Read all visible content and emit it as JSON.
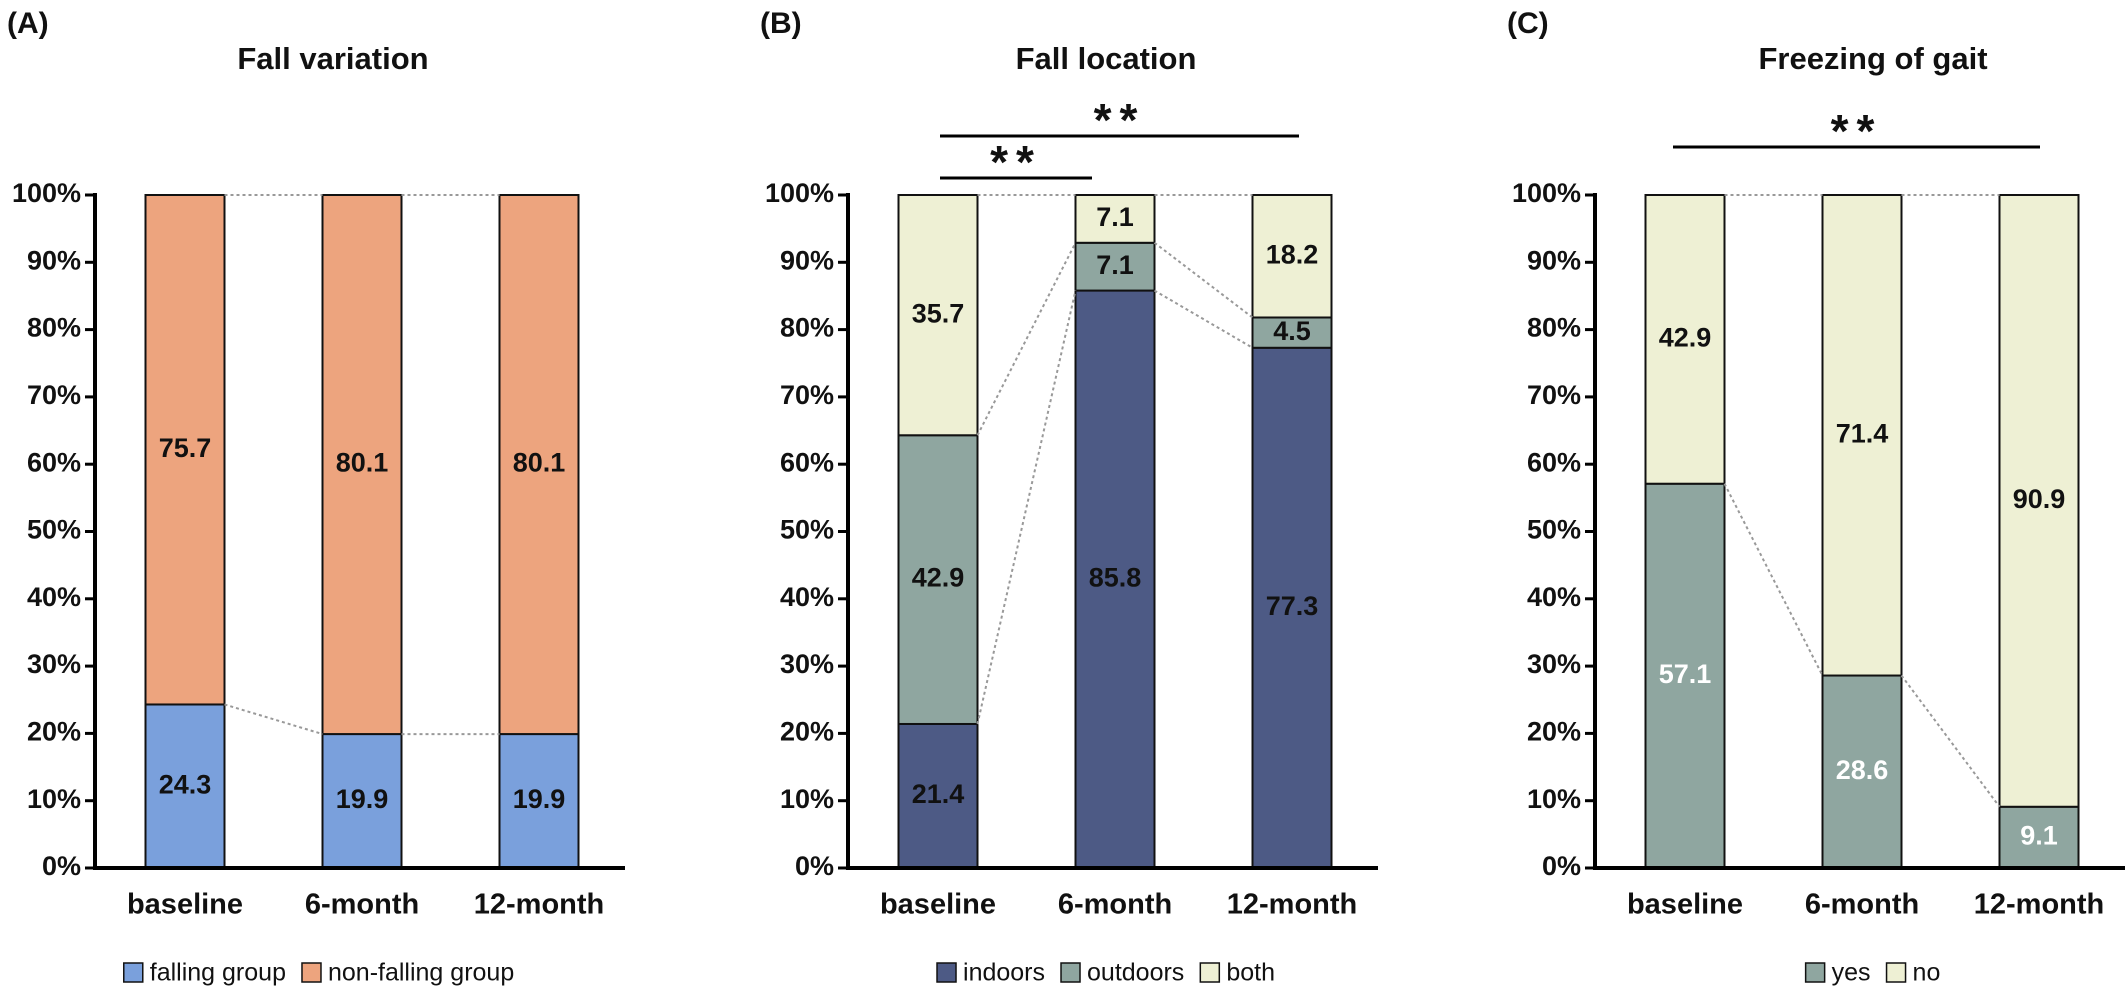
{
  "chart_data": [
    {
      "type": "stacked-bar",
      "panel_label": "(A)",
      "title": "Fall variation",
      "categories": [
        "baseline",
        "6-month",
        "12-month"
      ],
      "series": [
        {
          "name": "falling group",
          "color": "#7aa0dc",
          "label_color": "#111111",
          "values": [
            24.3,
            19.9,
            19.9
          ]
        },
        {
          "name": "non-falling group",
          "color": "#eda47e",
          "label_color": "#111111",
          "values": [
            75.7,
            80.1,
            80.1
          ]
        }
      ],
      "ylim": [
        0,
        100
      ],
      "yticks": [
        {
          "value": 0,
          "label": "0%"
        },
        {
          "value": 10,
          "label": "10%"
        },
        {
          "value": 20,
          "label": "20%"
        },
        {
          "value": 30,
          "label": "30%"
        },
        {
          "value": 40,
          "label": "40%"
        },
        {
          "value": 50,
          "label": "50%"
        },
        {
          "value": 60,
          "label": "60%"
        },
        {
          "value": 70,
          "label": "70%"
        },
        {
          "value": 80,
          "label": "80%"
        },
        {
          "value": 90,
          "label": "90%"
        },
        {
          "value": 100,
          "label": "100%"
        }
      ],
      "legend": "bottom",
      "annotations": []
    },
    {
      "type": "stacked-bar",
      "panel_label": "(B)",
      "title": "Fall location",
      "categories": [
        "baseline",
        "6-month",
        "12-month"
      ],
      "series": [
        {
          "name": "indoors",
          "color": "#4d5a85",
          "label_color": "#111111",
          "values": [
            21.4,
            85.8,
            77.3
          ]
        },
        {
          "name": "outdoors",
          "color": "#8fa6a0",
          "label_color": "#111111",
          "values": [
            42.9,
            7.1,
            4.5
          ]
        },
        {
          "name": "both",
          "color": "#eef0d4",
          "label_color": "#111111",
          "values": [
            35.7,
            7.1,
            18.2
          ]
        }
      ],
      "ylim": [
        0,
        100
      ],
      "yticks": [
        {
          "value": 0,
          "label": "0%"
        },
        {
          "value": 10,
          "label": "10%"
        },
        {
          "value": 20,
          "label": "20%"
        },
        {
          "value": 30,
          "label": "30%"
        },
        {
          "value": 40,
          "label": "40%"
        },
        {
          "value": 50,
          "label": "50%"
        },
        {
          "value": 60,
          "label": "60%"
        },
        {
          "value": 70,
          "label": "70%"
        },
        {
          "value": 80,
          "label": "80%"
        },
        {
          "value": 90,
          "label": "90%"
        },
        {
          "value": 100,
          "label": "100%"
        }
      ],
      "legend": "bottom",
      "annotations": [
        "**",
        "**"
      ]
    },
    {
      "type": "stacked-bar",
      "panel_label": "(C)",
      "title": "Freezing of gait",
      "categories": [
        "baseline",
        "6-month",
        "12-month"
      ],
      "series": [
        {
          "name": "yes",
          "color": "#8fa6a0",
          "label_color": "#ffffff",
          "values": [
            57.1,
            28.6,
            9.1
          ]
        },
        {
          "name": "no",
          "color": "#eef0d4",
          "label_color": "#111111",
          "values": [
            42.9,
            71.4,
            90.9
          ]
        }
      ],
      "ylim": [
        0,
        100
      ],
      "yticks": [
        {
          "value": 0,
          "label": "0%"
        },
        {
          "value": 10,
          "label": "10%"
        },
        {
          "value": 20,
          "label": "20%"
        },
        {
          "value": 30,
          "label": "30%"
        },
        {
          "value": 40,
          "label": "40%"
        },
        {
          "value": 50,
          "label": "50%"
        },
        {
          "value": 60,
          "label": "60%"
        },
        {
          "value": 70,
          "label": "70%"
        },
        {
          "value": 80,
          "label": "80%"
        },
        {
          "value": 90,
          "label": "90%"
        },
        {
          "value": 100,
          "label": "100%"
        }
      ],
      "legend": "bottom",
      "annotations": [
        "**"
      ]
    }
  ]
}
